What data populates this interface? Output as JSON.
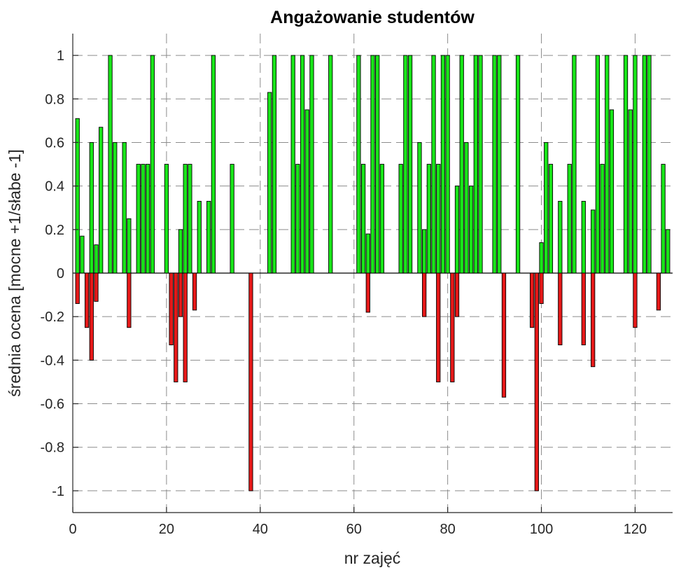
{
  "chart_data": {
    "type": "bar",
    "title": "Angażowanie studentów",
    "xlabel": "nr zajęć",
    "ylabel": "średnia ocena [mocne +1/słabe -1]",
    "xlim": [
      0,
      128
    ],
    "ylim": [
      -1.1,
      1.1
    ],
    "xticks": [
      0,
      20,
      40,
      60,
      80,
      100,
      120
    ],
    "yticks": [
      -1,
      -0.8,
      -0.6,
      -0.4,
      -0.2,
      0,
      0.2,
      0.4,
      0.6,
      0.8,
      1
    ],
    "grid": true,
    "colors": {
      "positive": "#19e619",
      "negative": "#e61919",
      "outline": "#000000",
      "grid": "#8c8c8c",
      "axes": "#262626"
    },
    "series": [
      {
        "values": [
          [
            1,
            0.71
          ],
          [
            2,
            0.17
          ],
          [
            4,
            0.6
          ],
          [
            5,
            0.13
          ],
          [
            6,
            0.67
          ],
          [
            8,
            1
          ],
          [
            9,
            0.6
          ],
          [
            11,
            0.6
          ],
          [
            12,
            0.25
          ],
          [
            14,
            0.5
          ],
          [
            15,
            0.5
          ],
          [
            16,
            0.5
          ],
          [
            17,
            1
          ],
          [
            20,
            0.5
          ],
          [
            23,
            0.2
          ],
          [
            24,
            0.5
          ],
          [
            25,
            0.5
          ],
          [
            27,
            0.33
          ],
          [
            29,
            0.33
          ],
          [
            30,
            1
          ],
          [
            34,
            0.5
          ],
          [
            42,
            0.83
          ],
          [
            43,
            1
          ],
          [
            47,
            1
          ],
          [
            48,
            0.5
          ],
          [
            49,
            1
          ],
          [
            50,
            0.75
          ],
          [
            51,
            1
          ],
          [
            55,
            1
          ],
          [
            61,
            1
          ],
          [
            62,
            0.5
          ],
          [
            63,
            0.18
          ],
          [
            64,
            1
          ],
          [
            65,
            1
          ],
          [
            66,
            0.5
          ],
          [
            70,
            0.5
          ],
          [
            71,
            1
          ],
          [
            72,
            1
          ],
          [
            74,
            0.6
          ],
          [
            75,
            0.2
          ],
          [
            76,
            0.5
          ],
          [
            77,
            1
          ],
          [
            78,
            0.5
          ],
          [
            79,
            1
          ],
          [
            80,
            1
          ],
          [
            82,
            0.4
          ],
          [
            83,
            1
          ],
          [
            84,
            0.6
          ],
          [
            85,
            0.4
          ],
          [
            86,
            1
          ],
          [
            87,
            1
          ],
          [
            90,
            1
          ],
          [
            91,
            1
          ],
          [
            95,
            1
          ],
          [
            100,
            0.14
          ],
          [
            101,
            0.6
          ],
          [
            102,
            0.5
          ],
          [
            104,
            0.33
          ],
          [
            106,
            0.5
          ],
          [
            107,
            1
          ],
          [
            109,
            0.33
          ],
          [
            111,
            0.29
          ],
          [
            112,
            1
          ],
          [
            113,
            0.5
          ],
          [
            114,
            1
          ],
          [
            115,
            0.75
          ],
          [
            118,
            1
          ],
          [
            119,
            0.75
          ],
          [
            120,
            1
          ],
          [
            122,
            1
          ],
          [
            123,
            1
          ],
          [
            126,
            0.5
          ],
          [
            127,
            0.2
          ]
        ]
      },
      {
        "values": [
          [
            1,
            -0.14
          ],
          [
            3,
            -0.25
          ],
          [
            4,
            -0.4
          ],
          [
            5,
            -0.13
          ],
          [
            12,
            -0.25
          ],
          [
            21,
            -0.33
          ],
          [
            22,
            -0.5
          ],
          [
            23,
            -0.2
          ],
          [
            24,
            -0.5
          ],
          [
            26,
            -0.17
          ],
          [
            38,
            -1
          ],
          [
            63,
            -0.18
          ],
          [
            75,
            -0.2
          ],
          [
            78,
            -0.5
          ],
          [
            81,
            -0.5
          ],
          [
            82,
            -0.2
          ],
          [
            92,
            -0.57
          ],
          [
            98,
            -0.25
          ],
          [
            99,
            -1
          ],
          [
            100,
            -0.14
          ],
          [
            104,
            -0.33
          ],
          [
            109,
            -0.33
          ],
          [
            111,
            -0.43
          ],
          [
            120,
            -0.25
          ],
          [
            125,
            -0.17
          ]
        ]
      }
    ]
  }
}
